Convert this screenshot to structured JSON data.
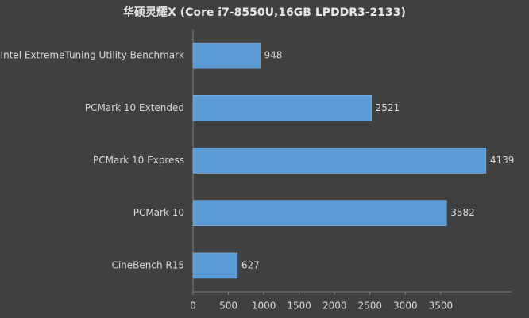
{
  "chart_data": {
    "type": "bar",
    "orientation": "horizontal",
    "title": "华硕灵耀X (Core i7-8550U,16GB LPDDR3-2133)",
    "categories": [
      "Intel ExtremeTuning Utility Benchmark",
      "PCMark 10 Extended",
      "PCMark 10 Express",
      "PCMark 10",
      "CineBench R15"
    ],
    "values": [
      948,
      2521,
      4139,
      3582,
      627
    ],
    "color": "#5b9bd5",
    "xlim": [
      0,
      4500
    ],
    "xticks": [
      0,
      500,
      1000,
      1500,
      2000,
      2500,
      3000,
      3500
    ]
  }
}
